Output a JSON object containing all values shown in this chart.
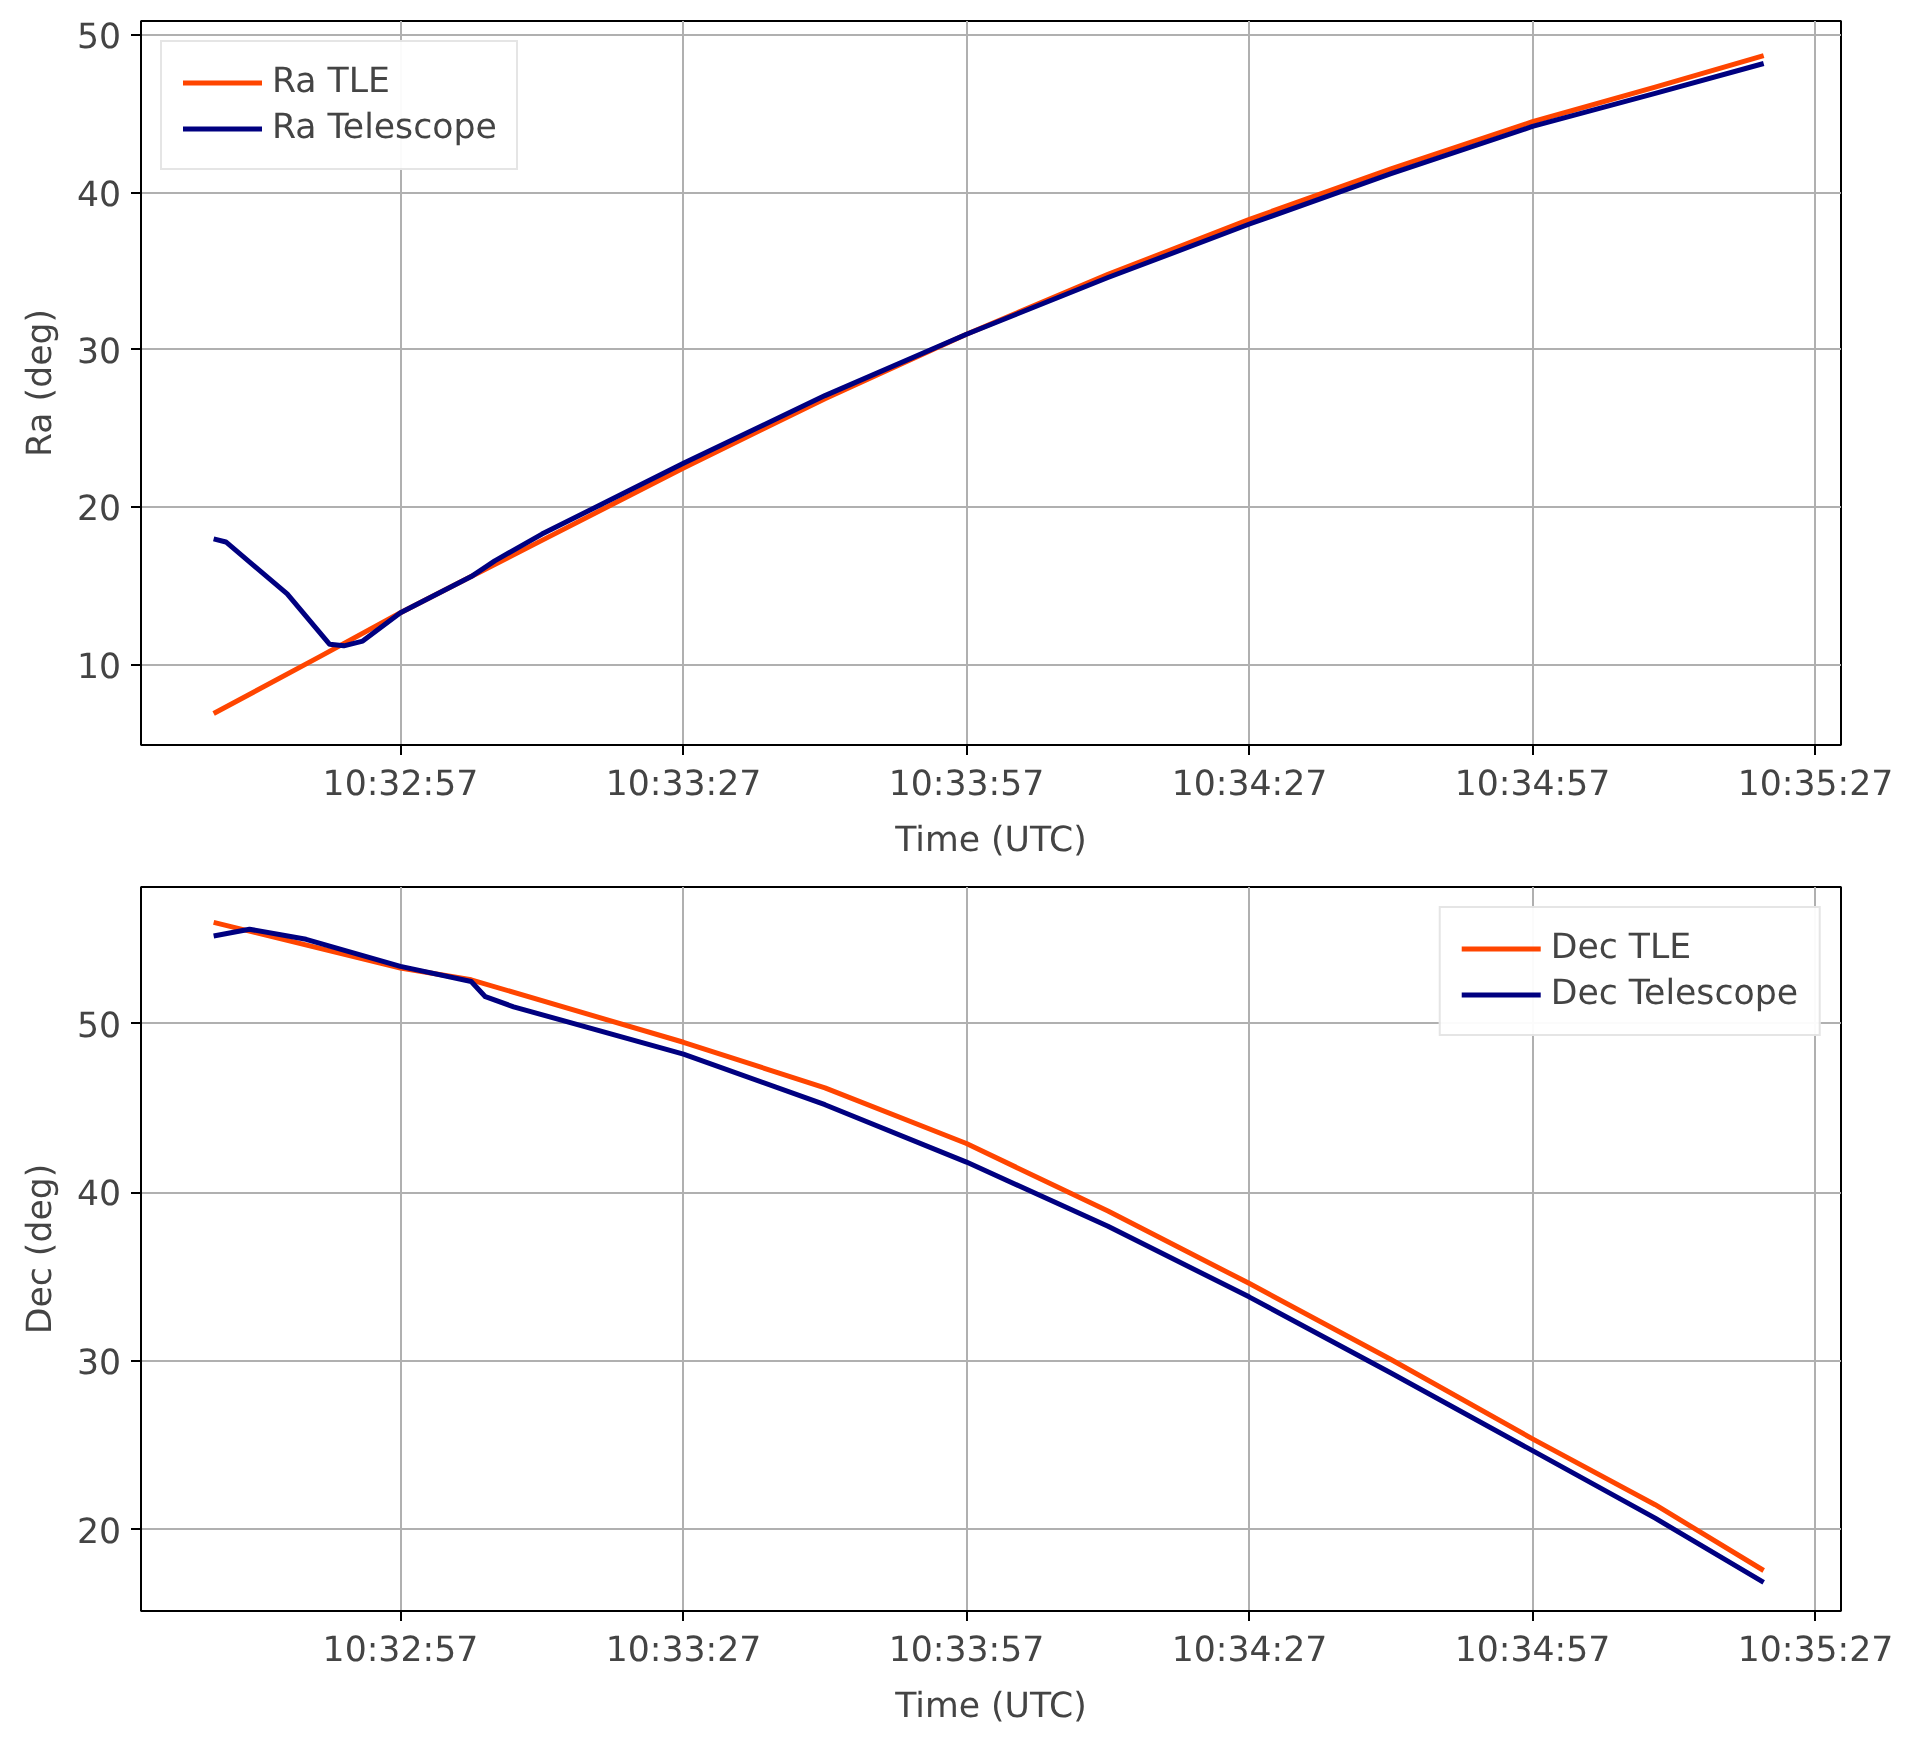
{
  "chart_data": [
    {
      "type": "line",
      "xlabel": "Time (UTC)",
      "ylabel": "Ra (deg)",
      "xlim": [
        10.541528,
        10.591583
      ],
      "ylim": [
        4.9,
        50.9
      ],
      "xticks": [
        {
          "value": 10.549167,
          "label": "10:32:57"
        },
        {
          "value": 10.5575,
          "label": "10:33:27"
        },
        {
          "value": 10.565833,
          "label": "10:33:57"
        },
        {
          "value": 10.574167,
          "label": "10:34:27"
        },
        {
          "value": 10.5825,
          "label": "10:34:57"
        },
        {
          "value": 10.590833,
          "label": "10:35:27"
        }
      ],
      "yticks": [
        10,
        20,
        30,
        40,
        50
      ],
      "grid": true,
      "legend": "top left",
      "series": [
        {
          "name": "Ra TLE",
          "color": "#ff4500",
          "x": [
            10.543667,
            10.546778,
            10.549167,
            10.55125,
            10.553333,
            10.5575,
            10.561667,
            10.565833,
            10.57,
            10.574167,
            10.578333,
            10.5825,
            10.586111,
            10.589306
          ],
          "values": [
            6.9,
            10.5,
            13.3,
            15.6,
            17.9,
            22.5,
            26.9,
            31.0,
            34.8,
            38.3,
            41.5,
            44.5,
            46.7,
            48.7
          ]
        },
        {
          "name": "Ra Telescope",
          "color": "#000080",
          "x": [
            10.543667,
            10.544028,
            10.545833,
            10.547083,
            10.5475,
            10.548056,
            10.549167,
            10.55125,
            10.551944,
            10.553333,
            10.5575,
            10.561667,
            10.565833,
            10.57,
            10.574167,
            10.578333,
            10.5825,
            10.586111,
            10.589306
          ],
          "values": [
            18.0,
            17.8,
            14.5,
            11.3,
            11.2,
            11.5,
            13.3,
            15.6,
            16.6,
            18.3,
            22.8,
            27.1,
            31.0,
            34.6,
            38.0,
            41.2,
            44.2,
            46.3,
            48.2
          ]
        }
      ]
    },
    {
      "type": "line",
      "xlabel": "Time (UTC)",
      "ylabel": "Dec (deg)",
      "xlim": [
        10.541528,
        10.591583
      ],
      "ylim": [
        15.2,
        58.1
      ],
      "xticks": [
        {
          "value": 10.549167,
          "label": "10:32:57"
        },
        {
          "value": 10.5575,
          "label": "10:33:27"
        },
        {
          "value": 10.565833,
          "label": "10:33:57"
        },
        {
          "value": 10.574167,
          "label": "10:34:27"
        },
        {
          "value": 10.5825,
          "label": "10:34:57"
        },
        {
          "value": 10.590833,
          "label": "10:35:27"
        }
      ],
      "yticks": [
        20,
        30,
        40,
        50
      ],
      "grid": true,
      "legend": "top right",
      "series": [
        {
          "name": "Dec TLE",
          "color": "#ff4500",
          "x": [
            10.543667,
            10.549167,
            10.55125,
            10.5575,
            10.561667,
            10.565833,
            10.57,
            10.574167,
            10.578333,
            10.5825,
            10.586111,
            10.589306
          ],
          "values": [
            56.0,
            53.3,
            52.6,
            48.9,
            46.2,
            42.9,
            38.9,
            34.6,
            30.1,
            25.4,
            21.5,
            17.6
          ]
        },
        {
          "name": "Dec Telescope",
          "color": "#000080",
          "x": [
            10.543667,
            10.544722,
            10.546389,
            10.549167,
            10.55125,
            10.551667,
            10.5525,
            10.5575,
            10.561667,
            10.565833,
            10.57,
            10.574167,
            10.578333,
            10.5825,
            10.586111,
            10.589306
          ],
          "values": [
            55.2,
            55.6,
            55.0,
            53.4,
            52.5,
            51.6,
            51.0,
            48.2,
            45.2,
            41.8,
            38.0,
            33.8,
            29.3,
            24.7,
            20.7,
            16.9
          ]
        }
      ]
    }
  ]
}
